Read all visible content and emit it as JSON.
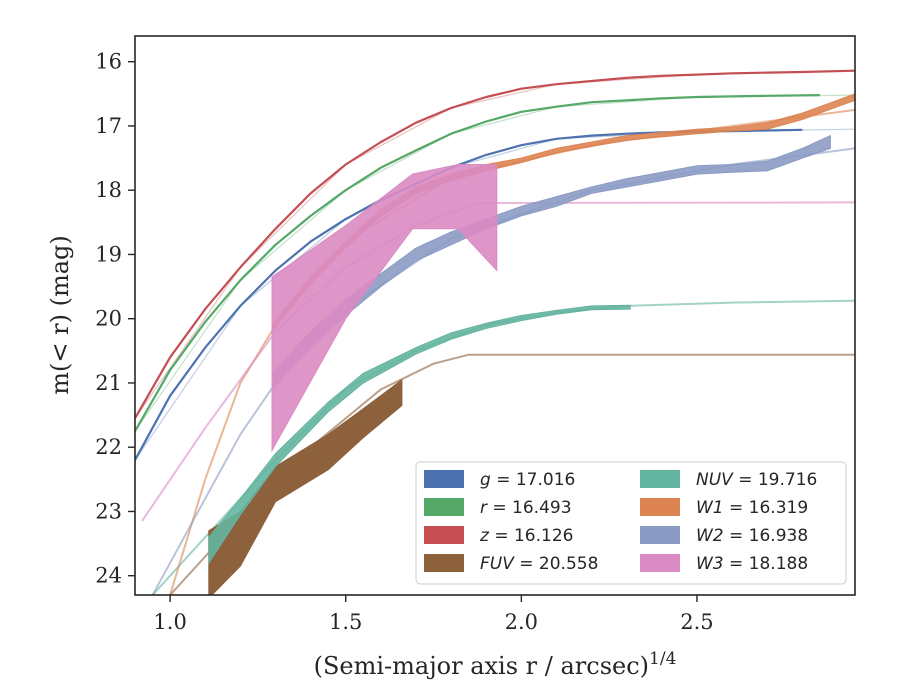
{
  "chart_data": {
    "type": "line",
    "xlabel": "(Semi-major axis r / arcsec)",
    "xlabel_sup": "1/4",
    "ylabel": "m(< r) (mag)",
    "xlim": [
      0.9,
      2.95
    ],
    "ylim": [
      24.3,
      15.6
    ],
    "y_inverted": true,
    "x_ticks": [
      1.0,
      1.5,
      2.0,
      2.5
    ],
    "x_tick_labels": [
      "1.0",
      "1.5",
      "2.0",
      "2.5"
    ],
    "y_ticks": [
      16,
      17,
      18,
      19,
      20,
      21,
      22,
      23,
      24
    ],
    "y_tick_labels": [
      "16",
      "17",
      "18",
      "19",
      "20",
      "21",
      "22",
      "23",
      "24"
    ],
    "grid": false,
    "legend_position": "lower-right",
    "legend_columns": 2,
    "series": [
      {
        "band": "g",
        "total": "17.016",
        "color": "#4c72b0",
        "measured": [
          [
            0.9,
            22.2
          ],
          [
            1.0,
            21.2
          ],
          [
            1.1,
            20.45
          ],
          [
            1.2,
            19.8
          ],
          [
            1.3,
            19.25
          ],
          [
            1.4,
            18.8
          ],
          [
            1.5,
            18.45
          ],
          [
            1.6,
            18.15
          ],
          [
            1.7,
            17.9
          ],
          [
            1.8,
            17.65
          ],
          [
            1.9,
            17.45
          ],
          [
            2.0,
            17.3
          ],
          [
            2.1,
            17.2
          ],
          [
            2.2,
            17.15
          ],
          [
            2.3,
            17.12
          ],
          [
            2.4,
            17.1
          ],
          [
            2.5,
            17.09
          ],
          [
            2.6,
            17.08
          ],
          [
            2.7,
            17.07
          ],
          [
            2.8,
            17.06
          ]
        ],
        "model": [
          [
            0.9,
            22.2
          ],
          [
            1.2,
            19.8
          ],
          [
            1.5,
            18.45
          ],
          [
            1.8,
            17.65
          ],
          [
            2.1,
            17.2
          ],
          [
            2.5,
            17.09
          ],
          [
            2.95,
            17.05
          ]
        ],
        "band_halfwidth": 0.02
      },
      {
        "band": "r",
        "total": "16.493",
        "color": "#55a868",
        "measured": [
          [
            0.9,
            21.75
          ],
          [
            1.0,
            20.8
          ],
          [
            1.1,
            20.05
          ],
          [
            1.2,
            19.4
          ],
          [
            1.3,
            18.85
          ],
          [
            1.4,
            18.4
          ],
          [
            1.5,
            18.0
          ],
          [
            1.6,
            17.65
          ],
          [
            1.7,
            17.38
          ],
          [
            1.8,
            17.12
          ],
          [
            1.9,
            16.93
          ],
          [
            2.0,
            16.78
          ],
          [
            2.1,
            16.7
          ],
          [
            2.2,
            16.63
          ],
          [
            2.3,
            16.6
          ],
          [
            2.4,
            16.57
          ],
          [
            2.5,
            16.55
          ],
          [
            2.6,
            16.54
          ],
          [
            2.7,
            16.53
          ],
          [
            2.85,
            16.52
          ]
        ],
        "model": [
          [
            0.9,
            21.75
          ],
          [
            1.2,
            19.4
          ],
          [
            1.5,
            18.0
          ],
          [
            1.8,
            17.12
          ],
          [
            2.1,
            16.7
          ],
          [
            2.5,
            16.55
          ],
          [
            2.95,
            16.52
          ]
        ],
        "band_halfwidth": 0.02
      },
      {
        "band": "z",
        "total": "16.126",
        "color": "#c44e52",
        "measured": [
          [
            0.9,
            21.55
          ],
          [
            1.0,
            20.6
          ],
          [
            1.1,
            19.85
          ],
          [
            1.2,
            19.2
          ],
          [
            1.3,
            18.6
          ],
          [
            1.4,
            18.05
          ],
          [
            1.5,
            17.6
          ],
          [
            1.6,
            17.25
          ],
          [
            1.7,
            16.95
          ],
          [
            1.8,
            16.72
          ],
          [
            1.9,
            16.55
          ],
          [
            2.0,
            16.42
          ],
          [
            2.1,
            16.35
          ],
          [
            2.2,
            16.3
          ],
          [
            2.3,
            16.25
          ],
          [
            2.4,
            16.22
          ],
          [
            2.5,
            16.2
          ],
          [
            2.6,
            16.18
          ],
          [
            2.7,
            16.17
          ],
          [
            2.8,
            16.16
          ],
          [
            2.95,
            16.14
          ]
        ],
        "model": [
          [
            0.9,
            21.55
          ],
          [
            1.2,
            19.2
          ],
          [
            1.5,
            17.6
          ],
          [
            1.8,
            16.72
          ],
          [
            2.1,
            16.35
          ],
          [
            2.5,
            16.2
          ],
          [
            2.95,
            16.14
          ]
        ],
        "band_halfwidth": 0.02
      },
      {
        "band": "FUV",
        "total": "20.558",
        "color": "#8c613c",
        "measured_band": [
          [
            1.11,
            23.3,
            24.35
          ],
          [
            1.2,
            23.0,
            23.85
          ],
          [
            1.3,
            22.3,
            22.85
          ],
          [
            1.45,
            21.8,
            22.35
          ],
          [
            1.55,
            21.4,
            21.85
          ],
          [
            1.66,
            20.95,
            21.35
          ]
        ],
        "model": [
          [
            1.0,
            24.3
          ],
          [
            1.2,
            23.1
          ],
          [
            1.4,
            22.0
          ],
          [
            1.6,
            21.1
          ],
          [
            1.75,
            20.7
          ],
          [
            1.85,
            20.56
          ],
          [
            2.95,
            20.56
          ]
        ]
      },
      {
        "band": "NUV",
        "total": "19.716",
        "color": "#64b5a0",
        "measured_band": [
          [
            1.11,
            23.4,
            23.8
          ],
          [
            1.2,
            22.8,
            23.05
          ],
          [
            1.3,
            22.1,
            22.3
          ],
          [
            1.45,
            21.3,
            21.45
          ],
          [
            1.55,
            20.85,
            21.0
          ],
          [
            1.7,
            20.45,
            20.55
          ],
          [
            1.8,
            20.22,
            20.32
          ],
          [
            1.9,
            20.07,
            20.15
          ],
          [
            2.0,
            19.95,
            20.03
          ],
          [
            2.1,
            19.87,
            19.93
          ],
          [
            2.2,
            19.8,
            19.86
          ],
          [
            2.31,
            19.79,
            19.85
          ]
        ],
        "model": [
          [
            0.95,
            24.3
          ],
          [
            1.1,
            23.4
          ],
          [
            1.3,
            22.2
          ],
          [
            1.5,
            21.1
          ],
          [
            1.7,
            20.5
          ],
          [
            1.9,
            20.1
          ],
          [
            2.1,
            19.9
          ],
          [
            2.3,
            19.8
          ],
          [
            2.6,
            19.75
          ],
          [
            2.95,
            19.72
          ]
        ]
      },
      {
        "band": "W1",
        "total": "16.319",
        "color": "#dd8452",
        "measured_band": [
          [
            1.29,
            20.1,
            20.2
          ],
          [
            1.4,
            19.35,
            19.45
          ],
          [
            1.5,
            18.8,
            18.9
          ],
          [
            1.6,
            18.3,
            18.4
          ],
          [
            1.7,
            17.95,
            18.05
          ],
          [
            1.8,
            17.75,
            17.85
          ],
          [
            1.9,
            17.6,
            17.7
          ],
          [
            2.0,
            17.5,
            17.57
          ],
          [
            2.1,
            17.35,
            17.42
          ],
          [
            2.2,
            17.25,
            17.32
          ],
          [
            2.3,
            17.15,
            17.22
          ],
          [
            2.4,
            17.1,
            17.17
          ],
          [
            2.5,
            17.05,
            17.12
          ],
          [
            2.6,
            17.02,
            17.08
          ],
          [
            2.7,
            16.95,
            17.05
          ],
          [
            2.8,
            16.8,
            16.9
          ],
          [
            2.9,
            16.6,
            16.7
          ],
          [
            2.95,
            16.5,
            16.6
          ]
        ],
        "model": [
          [
            1.0,
            24.3
          ],
          [
            1.1,
            22.5
          ],
          [
            1.2,
            21.0
          ],
          [
            1.3,
            20.1
          ],
          [
            1.5,
            18.8
          ],
          [
            1.8,
            17.8
          ],
          [
            2.2,
            17.3
          ],
          [
            2.6,
            17.0
          ],
          [
            2.95,
            16.75
          ]
        ]
      },
      {
        "band": "W2",
        "total": "16.938",
        "color": "#8c9bc4",
        "measured_band": [
          [
            1.29,
            20.85,
            21.1
          ],
          [
            1.4,
            20.2,
            20.45
          ],
          [
            1.5,
            19.7,
            19.95
          ],
          [
            1.6,
            19.3,
            19.5
          ],
          [
            1.7,
            18.9,
            19.1
          ],
          [
            1.8,
            18.65,
            18.85
          ],
          [
            1.9,
            18.45,
            18.6
          ],
          [
            2.0,
            18.25,
            18.4
          ],
          [
            2.1,
            18.1,
            18.25
          ],
          [
            2.2,
            17.95,
            18.05
          ],
          [
            2.3,
            17.82,
            17.95
          ],
          [
            2.4,
            17.72,
            17.85
          ],
          [
            2.5,
            17.62,
            17.75
          ],
          [
            2.6,
            17.6,
            17.72
          ],
          [
            2.7,
            17.55,
            17.7
          ],
          [
            2.8,
            17.35,
            17.5
          ],
          [
            2.88,
            17.15,
            17.35
          ]
        ],
        "model": [
          [
            0.95,
            24.3
          ],
          [
            1.1,
            22.8
          ],
          [
            1.2,
            21.8
          ],
          [
            1.3,
            21.0
          ],
          [
            1.5,
            19.85
          ],
          [
            1.8,
            18.75
          ],
          [
            2.2,
            18.0
          ],
          [
            2.6,
            17.6
          ],
          [
            2.95,
            17.35
          ]
        ]
      },
      {
        "band": "W3",
        "total": "18.188",
        "color": "#da8bc3",
        "measured_band": [
          [
            1.29,
            19.35,
            22.05
          ],
          [
            1.5,
            18.55,
            20.0
          ],
          [
            1.69,
            17.75,
            18.6
          ],
          [
            1.82,
            17.6,
            18.6
          ],
          [
            1.93,
            17.6,
            19.25
          ]
        ],
        "model": [
          [
            0.92,
            23.15
          ],
          [
            1.1,
            21.7
          ],
          [
            1.3,
            20.2
          ],
          [
            1.5,
            19.2
          ],
          [
            1.7,
            18.55
          ],
          [
            1.88,
            18.2
          ],
          [
            2.95,
            18.19
          ]
        ]
      }
    ],
    "legend": [
      {
        "band": "g",
        "equals": " = 17.016",
        "color": "#4c72b0"
      },
      {
        "band": "r",
        "equals": " = 16.493",
        "color": "#55a868"
      },
      {
        "band": "z",
        "equals": " = 16.126",
        "color": "#c44e52"
      },
      {
        "band": "FUV",
        "equals": " = 20.558",
        "color": "#8c613c"
      },
      {
        "band": "NUV",
        "equals": " = 19.716",
        "color": "#64b5a0"
      },
      {
        "band": "W1",
        "equals": " = 16.319",
        "color": "#dd8452"
      },
      {
        "band": "W2",
        "equals": " = 16.938",
        "color": "#8c9bc4"
      },
      {
        "band": "W3",
        "equals": " = 18.188",
        "color": "#da8bc3"
      }
    ]
  }
}
